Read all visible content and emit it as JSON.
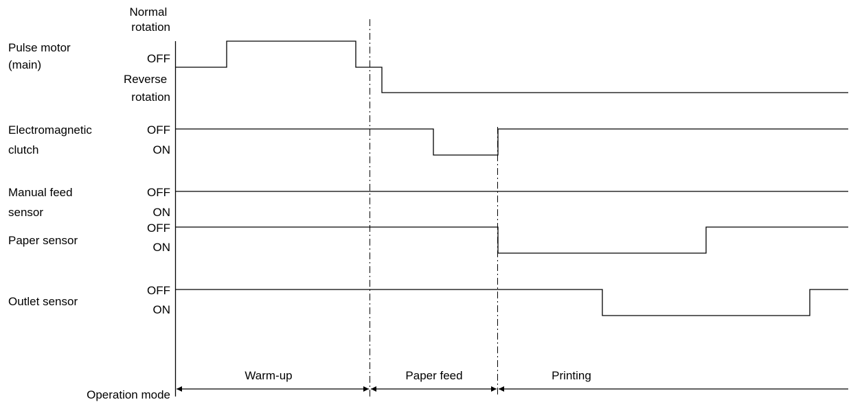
{
  "signals": [
    {
      "id": "pulse-motor",
      "name_lines": [
        "Pulse motor",
        "(main)"
      ],
      "state_labels": [
        [
          "Normal",
          "rotation"
        ],
        [
          "OFF"
        ],
        [
          "Reverse",
          "rotation"
        ]
      ]
    },
    {
      "id": "electromagnetic-clutch",
      "name_lines": [
        "Electromagnetic",
        "clutch"
      ],
      "state_labels": [
        [
          "OFF"
        ],
        [
          "ON"
        ]
      ]
    },
    {
      "id": "manual-feed-sensor",
      "name_lines": [
        "Manual feed",
        "sensor"
      ],
      "state_labels": [
        [
          "OFF"
        ],
        [
          "ON"
        ]
      ]
    },
    {
      "id": "paper-sensor",
      "name_lines": [
        "Paper sensor"
      ],
      "state_labels": [
        [
          "OFF"
        ],
        [
          "ON"
        ]
      ]
    },
    {
      "id": "outlet-sensor",
      "name_lines": [
        "Outlet sensor"
      ],
      "state_labels": [
        [
          "OFF"
        ],
        [
          "ON"
        ]
      ]
    }
  ],
  "operation_mode": {
    "label": "Operation mode",
    "phases": [
      "Warm-up",
      "Paper feed",
      "Printing"
    ]
  },
  "colors": {
    "line": "#000000",
    "background": "#ffffff"
  }
}
